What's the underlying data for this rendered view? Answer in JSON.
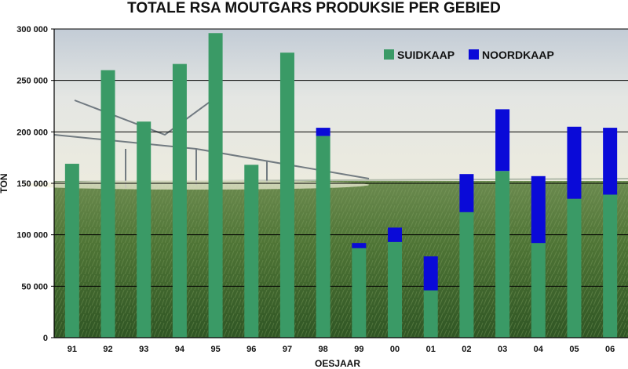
{
  "chart_data": {
    "type": "bar",
    "stacked": true,
    "title": "TOTALE RSA MOUTGARS PRODUKSIE PER GEBIED",
    "xlabel": "OESJAAR",
    "ylabel": "TON",
    "ylim": [
      0,
      300000
    ],
    "yticks": [
      0,
      50000,
      100000,
      150000,
      200000,
      250000,
      300000
    ],
    "ytick_labels": [
      "0",
      "50 000",
      "100 000",
      "150 000",
      "200 000",
      "250 000",
      "300 000"
    ],
    "grid": true,
    "legend_position": "top-right",
    "categories": [
      "91",
      "92",
      "93",
      "94",
      "95",
      "96",
      "97",
      "98",
      "99",
      "00",
      "01",
      "02",
      "03",
      "04",
      "05",
      "06"
    ],
    "series": [
      {
        "name": "SUIDKAAP",
        "color": "#3a9a66",
        "values": [
          169000,
          260000,
          210000,
          266000,
          296000,
          168000,
          277000,
          196000,
          87000,
          93000,
          46000,
          122000,
          162000,
          92000,
          135000,
          139000
        ]
      },
      {
        "name": "NOORDKAAP",
        "color": "#0a0ad8",
        "values": [
          0,
          0,
          0,
          0,
          0,
          0,
          0,
          8000,
          5000,
          14000,
          33000,
          37000,
          60000,
          65000,
          70000,
          65000
        ]
      }
    ]
  }
}
